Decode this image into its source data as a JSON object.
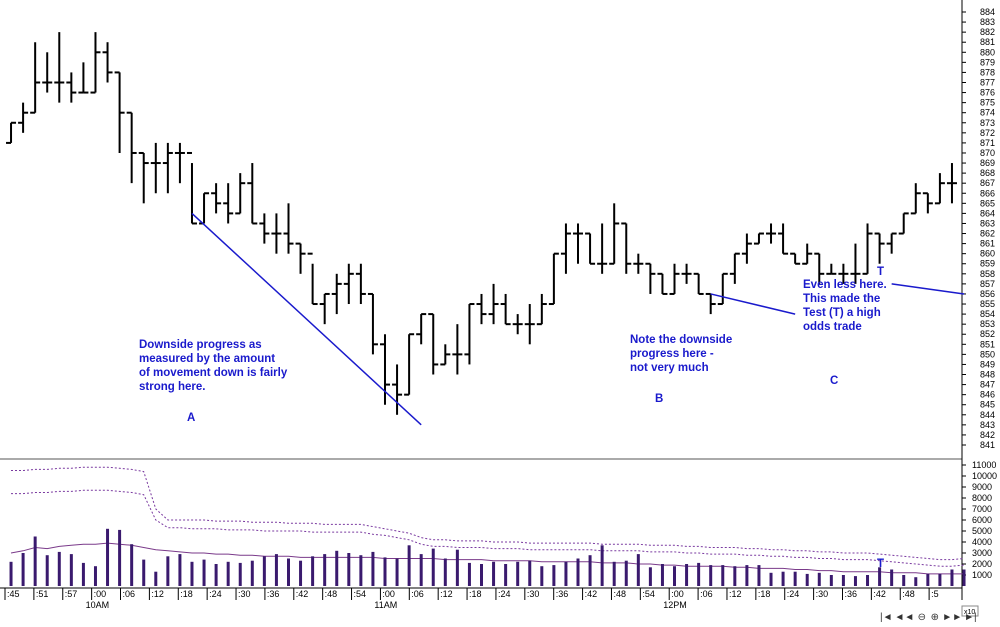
{
  "chart_data": {
    "type": "bar",
    "price_axis": {
      "min": 841,
      "max": 884,
      "ticks": [
        841,
        842,
        843,
        844,
        845,
        846,
        847,
        848,
        849,
        850,
        851,
        852,
        853,
        854,
        855,
        856,
        857,
        858,
        859,
        860,
        861,
        862,
        863,
        864,
        865,
        866,
        867,
        868,
        869,
        870,
        871,
        872,
        873,
        874,
        875,
        876,
        877,
        878,
        879,
        880,
        881,
        882,
        883,
        884
      ]
    },
    "volume_axis": {
      "min": 0,
      "max": 11000,
      "ticks": [
        1000,
        2000,
        3000,
        4000,
        5000,
        6000,
        7000,
        8000,
        9000,
        10000,
        11000
      ]
    },
    "x_axis": {
      "ticks": [
        ":45",
        ":51",
        ":57",
        ":00",
        ":06",
        ":12",
        ":18",
        ":24",
        ":30",
        ":36",
        ":42",
        ":48",
        ":54",
        ":00",
        ":06",
        ":12",
        ":18",
        ":24",
        ":30",
        ":36",
        ":42",
        ":48",
        ":54",
        ":00",
        ":06",
        ":12",
        ":18",
        ":24",
        ":30",
        ":36",
        ":42",
        ":48",
        ":5"
      ],
      "hours": [
        "10AM",
        "11AM",
        "12PM"
      ]
    },
    "bars": [
      {
        "o": 871,
        "h": 873,
        "l": 871,
        "c": 873
      },
      {
        "o": 873,
        "h": 875,
        "l": 872,
        "c": 874
      },
      {
        "o": 874,
        "h": 881,
        "l": 874,
        "c": 877
      },
      {
        "o": 877,
        "h": 880,
        "l": 876,
        "c": 877
      },
      {
        "o": 877,
        "h": 882,
        "l": 875,
        "c": 877
      },
      {
        "o": 877,
        "h": 878,
        "l": 875,
        "c": 876
      },
      {
        "o": 876,
        "h": 879,
        "l": 876,
        "c": 876
      },
      {
        "o": 876,
        "h": 882,
        "l": 876,
        "c": 880
      },
      {
        "o": 880,
        "h": 881,
        "l": 877,
        "c": 878
      },
      {
        "o": 878,
        "h": 878,
        "l": 870,
        "c": 874
      },
      {
        "o": 874,
        "h": 874,
        "l": 867,
        "c": 870
      },
      {
        "o": 870,
        "h": 870,
        "l": 865,
        "c": 869
      },
      {
        "o": 869,
        "h": 871,
        "l": 866,
        "c": 869
      },
      {
        "o": 869,
        "h": 871,
        "l": 866,
        "c": 870
      },
      {
        "o": 870,
        "h": 871,
        "l": 867,
        "c": 870
      },
      {
        "o": 870,
        "h": 869,
        "l": 863,
        "c": 863
      },
      {
        "o": 863,
        "h": 866,
        "l": 863,
        "c": 866
      },
      {
        "o": 866,
        "h": 867,
        "l": 864,
        "c": 865
      },
      {
        "o": 865,
        "h": 867,
        "l": 863,
        "c": 864
      },
      {
        "o": 864,
        "h": 868,
        "l": 864,
        "c": 867
      },
      {
        "o": 867,
        "h": 869,
        "l": 863,
        "c": 863
      },
      {
        "o": 863,
        "h": 864,
        "l": 861,
        "c": 862
      },
      {
        "o": 862,
        "h": 864,
        "l": 860,
        "c": 862
      },
      {
        "o": 862,
        "h": 865,
        "l": 860,
        "c": 861
      },
      {
        "o": 861,
        "h": 861,
        "l": 858,
        "c": 860
      },
      {
        "o": 860,
        "h": 859,
        "l": 855,
        "c": 855
      },
      {
        "o": 855,
        "h": 856,
        "l": 853,
        "c": 856
      },
      {
        "o": 856,
        "h": 858,
        "l": 854,
        "c": 857
      },
      {
        "o": 857,
        "h": 859,
        "l": 855,
        "c": 858
      },
      {
        "o": 858,
        "h": 859,
        "l": 855,
        "c": 856
      },
      {
        "o": 856,
        "h": 856,
        "l": 850,
        "c": 851
      },
      {
        "o": 851,
        "h": 852,
        "l": 845,
        "c": 847
      },
      {
        "o": 847,
        "h": 849,
        "l": 844,
        "c": 846
      },
      {
        "o": 846,
        "h": 852,
        "l": 846,
        "c": 852
      },
      {
        "o": 852,
        "h": 854,
        "l": 851,
        "c": 854
      },
      {
        "o": 854,
        "h": 854,
        "l": 848,
        "c": 849
      },
      {
        "o": 849,
        "h": 851,
        "l": 849,
        "c": 850
      },
      {
        "o": 850,
        "h": 853,
        "l": 848,
        "c": 850
      },
      {
        "o": 850,
        "h": 855,
        "l": 849,
        "c": 855
      },
      {
        "o": 855,
        "h": 856,
        "l": 853,
        "c": 854
      },
      {
        "o": 854,
        "h": 857,
        "l": 853,
        "c": 855
      },
      {
        "o": 855,
        "h": 856,
        "l": 853,
        "c": 853
      },
      {
        "o": 853,
        "h": 854,
        "l": 852,
        "c": 853
      },
      {
        "o": 853,
        "h": 855,
        "l": 851,
        "c": 853
      },
      {
        "o": 853,
        "h": 856,
        "l": 853,
        "c": 855
      },
      {
        "o": 855,
        "h": 860,
        "l": 855,
        "c": 860
      },
      {
        "o": 860,
        "h": 863,
        "l": 858,
        "c": 862
      },
      {
        "o": 862,
        "h": 863,
        "l": 859,
        "c": 862
      },
      {
        "o": 862,
        "h": 862,
        "l": 859,
        "c": 859
      },
      {
        "o": 859,
        "h": 863,
        "l": 858,
        "c": 859
      },
      {
        "o": 859,
        "h": 865,
        "l": 859,
        "c": 863
      },
      {
        "o": 863,
        "h": 863,
        "l": 858,
        "c": 859
      },
      {
        "o": 859,
        "h": 860,
        "l": 858,
        "c": 859
      },
      {
        "o": 859,
        "h": 859,
        "l": 856,
        "c": 858
      },
      {
        "o": 858,
        "h": 858,
        "l": 856,
        "c": 856
      },
      {
        "o": 856,
        "h": 859,
        "l": 856,
        "c": 858
      },
      {
        "o": 858,
        "h": 859,
        "l": 857,
        "c": 858
      },
      {
        "o": 858,
        "h": 858,
        "l": 856,
        "c": 856
      },
      {
        "o": 856,
        "h": 856,
        "l": 854,
        "c": 855
      },
      {
        "o": 855,
        "h": 858,
        "l": 855,
        "c": 858
      },
      {
        "o": 858,
        "h": 860,
        "l": 857,
        "c": 860
      },
      {
        "o": 860,
        "h": 862,
        "l": 859,
        "c": 861
      },
      {
        "o": 861,
        "h": 862,
        "l": 861,
        "c": 862
      },
      {
        "o": 862,
        "h": 863,
        "l": 861,
        "c": 862
      },
      {
        "o": 862,
        "h": 863,
        "l": 860,
        "c": 860
      },
      {
        "o": 860,
        "h": 860,
        "l": 859,
        "c": 859
      },
      {
        "o": 859,
        "h": 861,
        "l": 859,
        "c": 860
      },
      {
        "o": 860,
        "h": 860,
        "l": 857,
        "c": 858
      },
      {
        "o": 858,
        "h": 859,
        "l": 858,
        "c": 858
      },
      {
        "o": 858,
        "h": 859,
        "l": 857,
        "c": 858
      },
      {
        "o": 858,
        "h": 861,
        "l": 857,
        "c": 858
      },
      {
        "o": 858,
        "h": 863,
        "l": 858,
        "c": 862
      },
      {
        "o": 862,
        "h": 862,
        "l": 859,
        "c": 861
      },
      {
        "o": 861,
        "h": 862,
        "l": 860,
        "c": 862
      },
      {
        "o": 862,
        "h": 864,
        "l": 862,
        "c": 864
      },
      {
        "o": 864,
        "h": 867,
        "l": 864,
        "c": 866
      },
      {
        "o": 866,
        "h": 866,
        "l": 864,
        "c": 865
      },
      {
        "o": 865,
        "h": 868,
        "l": 865,
        "c": 867
      },
      {
        "o": 867,
        "h": 869,
        "l": 865,
        "c": 867
      }
    ],
    "volume": [
      2200,
      3000,
      4500,
      2800,
      3100,
      2900,
      2100,
      1800,
      5200,
      5100,
      3800,
      2400,
      1300,
      2700,
      2900,
      2200,
      2400,
      2000,
      2200,
      2100,
      2300,
      2700,
      2900,
      2500,
      2300,
      2700,
      2900,
      3200,
      3000,
      2800,
      3100,
      2600,
      2500,
      3700,
      2900,
      3400,
      2500,
      3300,
      2100,
      2000,
      2200,
      2000,
      2200,
      2300,
      1800,
      1900,
      2200,
      2500,
      2800,
      3700,
      2200,
      2300,
      2900,
      1700,
      2000,
      1800,
      2000,
      2100,
      1900,
      1900,
      1800,
      1900,
      1900,
      1200,
      1300,
      1300,
      1100,
      1200,
      1000,
      1000,
      900,
      1000,
      1700,
      1500,
      1000,
      800,
      1100,
      1100,
      1500,
      1500
    ],
    "volume_ma": [
      3000,
      3200,
      3500,
      3400,
      3600,
      3700,
      3800,
      3800,
      3900,
      3800,
      3700,
      3500,
      3300,
      3200,
      3100,
      3000,
      3000,
      2900,
      2900,
      2800,
      2800,
      2700,
      2700,
      2700,
      2600,
      2600,
      2600,
      2600,
      2600,
      2600,
      2600,
      2500,
      2500,
      2500,
      2500,
      2500,
      2400,
      2400,
      2400,
      2400,
      2300,
      2300,
      2300,
      2300,
      2200,
      2200,
      2200,
      2200,
      2200,
      2100,
      2100,
      2100,
      2000,
      2000,
      1900,
      1900,
      1800,
      1800,
      1800,
      1800,
      1700,
      1700,
      1600,
      1600,
      1600,
      1500,
      1500,
      1400,
      1400,
      1300,
      1300,
      1300,
      1300,
      1200,
      1200,
      1200,
      1100,
      1100,
      1100,
      1100
    ],
    "volume_upper_band": [
      10500,
      10500,
      10600,
      10600,
      10700,
      10700,
      10800,
      10800,
      10800,
      10700,
      10600,
      10400,
      7000,
      6000,
      6000,
      6000,
      6000,
      5900,
      5900,
      5900,
      5800,
      5800,
      5800,
      5700,
      5700,
      5700,
      5600,
      5600,
      5600,
      5600,
      5400,
      5200,
      5000,
      4800,
      4400,
      4200,
      4200,
      4100,
      4100,
      4100,
      4000,
      4000,
      4000,
      3900,
      3900,
      3900,
      3900,
      3900,
      3900,
      3800,
      3800,
      3800,
      3800,
      3700,
      3700,
      3700,
      3600,
      3600,
      3500,
      3500,
      3500,
      3400,
      3400,
      3300,
      3300,
      3200,
      3200,
      3100,
      3100,
      3000,
      3000,
      3000,
      2900,
      2800,
      2700,
      2600,
      2500,
      2400,
      2400,
      2500
    ],
    "volume_lower_band": [
      8400,
      8400,
      8500,
      8500,
      8600,
      8600,
      8700,
      8700,
      8700,
      8600,
      8500,
      8300,
      6000,
      5300,
      5300,
      5200,
      5200,
      5200,
      5100,
      5100,
      5100,
      5000,
      5000,
      5000,
      5000,
      4900,
      4900,
      4900,
      4900,
      4900,
      4700,
      4600,
      4400,
      4200,
      3800,
      3600,
      3600,
      3500,
      3500,
      3500,
      3400,
      3400,
      3400,
      3300,
      3300,
      3300,
      3300,
      3300,
      3300,
      3200,
      3200,
      3200,
      3200,
      3100,
      3100,
      3100,
      3000,
      3000,
      2900,
      2900,
      2900,
      2800,
      2800,
      2700,
      2700,
      2600,
      2600,
      2500,
      2500,
      2400,
      2400,
      2400,
      2300,
      2200,
      2100,
      2000,
      1900,
      1800,
      1800,
      1900
    ],
    "trendlines": [
      {
        "label": "A",
        "from": {
          "bar": 15,
          "price": 864
        },
        "to": {
          "bar": 34,
          "price": 843
        }
      },
      {
        "label": "B",
        "from": {
          "bar": 58,
          "price": 856
        },
        "to": {
          "bar": 65,
          "price": 854
        }
      },
      {
        "label": "C",
        "from": {
          "bar": 73,
          "price": 857
        },
        "to": {
          "bar": 79,
          "price": 856
        }
      }
    ],
    "colors": {
      "price_bar": "#000000",
      "volume_bar": "#3a1a6e",
      "volume_ma": "#7a3a8a",
      "bands": "#7a3aa0",
      "trendline": "#1a1acc",
      "annotation": "#1a1acc"
    }
  },
  "annotations": {
    "a_text": [
      "Downside progress as",
      "measured by the amount",
      "of movement down is fairly",
      "strong here."
    ],
    "a_label": "A",
    "b_text": [
      "Note the downside",
      "progress here -",
      "not very much"
    ],
    "b_label": "B",
    "c_text": [
      "Even less here.",
      "This made the",
      "Test (T) a high",
      "odds trade"
    ],
    "c_label": "C",
    "t_price": "T",
    "t_volume": "T"
  },
  "scale_box": {
    "label": "x10"
  },
  "nav": {
    "first": "|◄",
    "prev_page": "◄◄",
    "zoom_out": "⊖",
    "zoom_in": "⊕",
    "next_page": "►►",
    "last": "►|"
  }
}
